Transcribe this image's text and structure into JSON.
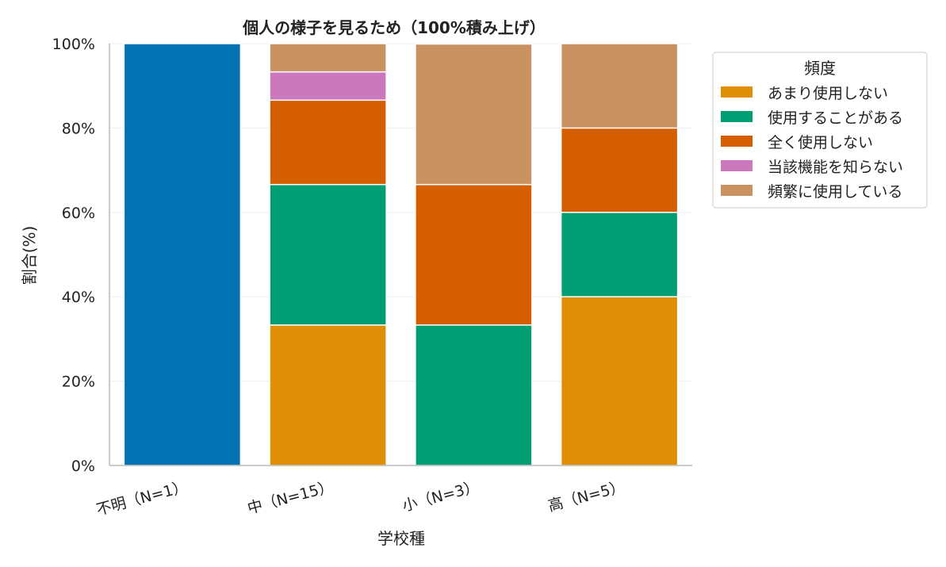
{
  "chart_data": {
    "type": "bar",
    "stacked": true,
    "normalized_100": true,
    "title": "個人の様子を見るため（100%積み上げ）",
    "xlabel": "学校種",
    "ylabel": "割合(%)",
    "ylim": [
      0,
      100
    ],
    "yticks": [
      "0%",
      "20%",
      "40%",
      "60%",
      "80%",
      "100%"
    ],
    "ytick_values": [
      0,
      20,
      40,
      60,
      80,
      100
    ],
    "grid": true,
    "legend_title": "頻度",
    "legend_position": "right",
    "categories": [
      "不明（N=1）",
      "中（N=15）",
      "小（N=3）",
      "高（N=5）"
    ],
    "series": [
      {
        "name": "",
        "color": "#0173b2",
        "values": [
          100,
          0,
          0,
          0
        ]
      },
      {
        "name": "あまり使用しない",
        "color": "#de8f05",
        "values": [
          0,
          33.3,
          0,
          40
        ]
      },
      {
        "name": "使用することがある",
        "color": "#029e73",
        "values": [
          0,
          33.3,
          33.3,
          20
        ]
      },
      {
        "name": "全く使用しない",
        "color": "#d55e00",
        "values": [
          0,
          20,
          33.3,
          20
        ]
      },
      {
        "name": "当該機能を知らない",
        "color": "#cc78bc",
        "values": [
          0,
          6.7,
          0,
          0
        ]
      },
      {
        "name": "頻繁に使用している",
        "color": "#ca9161",
        "values": [
          0,
          6.7,
          33.3,
          20
        ]
      }
    ]
  }
}
